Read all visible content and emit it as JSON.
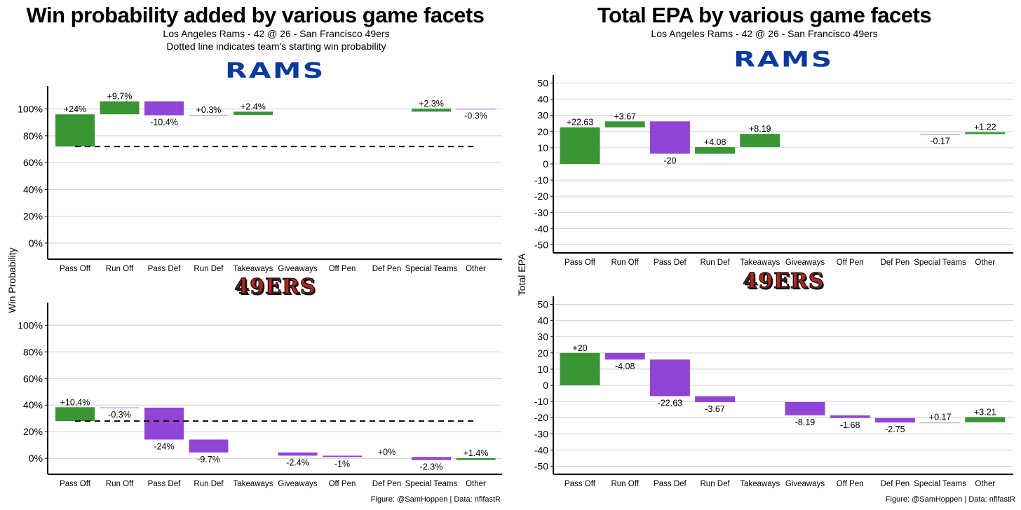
{
  "left": {
    "title": "Win probability added by various game facets",
    "subtitle1": "Los Angeles Rams - 42 @ 26 - San Francisco 49ers",
    "subtitle2": "Dotted line indicates team's starting win probability",
    "ylabel": "Win Probability",
    "caption": "Figure: @SamHoppen | Data: nflfastR"
  },
  "right": {
    "title": "Total EPA by various game facets",
    "subtitle1": "Los Angeles Rams - 42 @ 26 - San Francisco 49ers",
    "ylabel": "Total EPA",
    "caption": "Figure: @SamHoppen | Data: nflfastR"
  },
  "logos": {
    "rams": "RAMS",
    "niners": "49ERS"
  },
  "colors": {
    "positive": "#2f8f2a",
    "negative": "#8a3bd4",
    "grid": "#d0d0d0"
  },
  "chart_data": [
    {
      "type": "waterfall",
      "id": "wp-rams",
      "team": "Los Angeles Rams",
      "categories": [
        "Pass Off",
        "Run Off",
        "Pass Def",
        "Run Def",
        "Takeaways",
        "Giveaways",
        "Off Pen",
        "Def Pen",
        "Special Teams",
        "Other"
      ],
      "start": 72,
      "unit": "%",
      "values": [
        24,
        9.7,
        -10.4,
        0.3,
        2.4,
        null,
        null,
        null,
        2.3,
        -0.3
      ],
      "labels": [
        "+24%",
        "+9.7%",
        "-10.4%",
        "+0.3%",
        "+2.4%",
        null,
        null,
        null,
        "+2.3%",
        "-0.3%"
      ],
      "yticks": [
        0,
        20,
        40,
        60,
        80,
        100
      ],
      "ytick_labels": [
        "0%",
        "20%",
        "40%",
        "60%",
        "80%",
        "100%"
      ],
      "ylim": [
        -12,
        117
      ],
      "dashed_start_line": true
    },
    {
      "type": "waterfall",
      "id": "wp-niners",
      "team": "San Francisco 49ers",
      "categories": [
        "Pass Off",
        "Run Off",
        "Pass Def",
        "Run Def",
        "Takeaways",
        "Giveaways",
        "Off Pen",
        "Def Pen",
        "Special Teams",
        "Other"
      ],
      "start": 28,
      "unit": "%",
      "values": [
        10.4,
        -0.3,
        -24,
        -9.7,
        null,
        -2.4,
        -1,
        0,
        -2.3,
        1.4
      ],
      "labels": [
        "+10.4%",
        "-0.3%",
        "-24%",
        "-9.7%",
        null,
        "-2.4%",
        "-1%",
        "+0%",
        "-2.3%",
        "+1.4%"
      ],
      "yticks": [
        0,
        20,
        40,
        60,
        80,
        100
      ],
      "ytick_labels": [
        "0%",
        "20%",
        "40%",
        "60%",
        "80%",
        "100%"
      ],
      "ylim": [
        -12,
        117
      ],
      "dashed_start_line": true
    },
    {
      "type": "waterfall",
      "id": "epa-rams",
      "team": "Los Angeles Rams",
      "categories": [
        "Pass Off",
        "Run Off",
        "Pass Def",
        "Run Def",
        "Takeaways",
        "Giveaways",
        "Off Pen",
        "Def Pen",
        "Special Teams",
        "Other"
      ],
      "start": 0,
      "unit": "",
      "values": [
        22.63,
        3.67,
        -20,
        4.08,
        8.19,
        null,
        null,
        null,
        -0.17,
        1.22
      ],
      "labels": [
        "+22.63",
        "+3.67",
        "-20",
        "+4.08",
        "+8.19",
        null,
        null,
        null,
        "-0.17",
        "+1.22"
      ],
      "yticks": [
        -50,
        -40,
        -30,
        -20,
        -10,
        0,
        10,
        20,
        30,
        40,
        50
      ],
      "ytick_labels": [
        "-50",
        "-40",
        "-30",
        "-20",
        "-10",
        "0",
        "10",
        "20",
        "30",
        "40",
        "50"
      ],
      "ylim": [
        -55,
        55
      ],
      "dashed_start_line": false
    },
    {
      "type": "waterfall",
      "id": "epa-niners",
      "team": "San Francisco 49ers",
      "categories": [
        "Pass Off",
        "Run Off",
        "Pass Def",
        "Run Def",
        "Takeaways",
        "Giveaways",
        "Off Pen",
        "Def Pen",
        "Special Teams",
        "Other"
      ],
      "start": 0,
      "unit": "",
      "values": [
        20,
        -4.08,
        -22.63,
        -3.67,
        null,
        -8.19,
        -1.68,
        -2.75,
        0.17,
        3.21
      ],
      "labels": [
        "+20",
        "-4.08",
        "-22.63",
        "-3.67",
        null,
        "-8.19",
        "-1.68",
        "-2.75",
        "+0.17",
        "+3.21"
      ],
      "yticks": [
        -50,
        -40,
        -30,
        -20,
        -10,
        0,
        10,
        20,
        30,
        40,
        50
      ],
      "ytick_labels": [
        "-50",
        "-40",
        "-30",
        "-20",
        "-10",
        "0",
        "10",
        "20",
        "30",
        "40",
        "50"
      ],
      "ylim": [
        -55,
        55
      ],
      "dashed_start_line": false
    }
  ]
}
